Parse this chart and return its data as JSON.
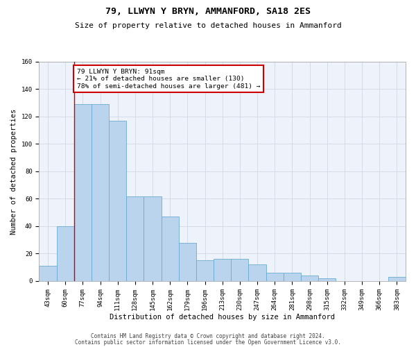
{
  "title1": "79, LLWYN Y BRYN, AMMANFORD, SA18 2ES",
  "title2": "Size of property relative to detached houses in Ammanford",
  "xlabel": "Distribution of detached houses by size in Ammanford",
  "ylabel": "Number of detached properties",
  "categories": [
    "43sqm",
    "60sqm",
    "77sqm",
    "94sqm",
    "111sqm",
    "128sqm",
    "145sqm",
    "162sqm",
    "179sqm",
    "196sqm",
    "213sqm",
    "230sqm",
    "247sqm",
    "264sqm",
    "281sqm",
    "298sqm",
    "315sqm",
    "332sqm",
    "349sqm",
    "366sqm",
    "383sqm"
  ],
  "values": [
    11,
    40,
    129,
    129,
    117,
    62,
    62,
    47,
    28,
    15,
    16,
    16,
    12,
    6,
    6,
    4,
    2,
    0,
    0,
    0,
    3
  ],
  "bar_color": "#bad4ed",
  "bar_edge_color": "#6aaad4",
  "vline_x": 1.5,
  "annotation_text": "79 LLWYN Y BRYN: 91sqm\n← 21% of detached houses are smaller (130)\n78% of semi-detached houses are larger (481) →",
  "annotation_box_color": "#ffffff",
  "annotation_box_edge": "#cc0000",
  "vline_color": "#cc0000",
  "ylim": [
    0,
    160
  ],
  "yticks": [
    0,
    20,
    40,
    60,
    80,
    100,
    120,
    140,
    160
  ],
  "grid_color": "#d0d8e8",
  "bg_color": "#eef2fa",
  "footer1": "Contains HM Land Registry data © Crown copyright and database right 2024.",
  "footer2": "Contains public sector information licensed under the Open Government Licence v3.0.",
  "title_fontsize": 9.5,
  "subtitle_fontsize": 8,
  "axis_label_fontsize": 7.5,
  "tick_fontsize": 6.5,
  "annotation_fontsize": 6.8,
  "footer_fontsize": 5.5
}
